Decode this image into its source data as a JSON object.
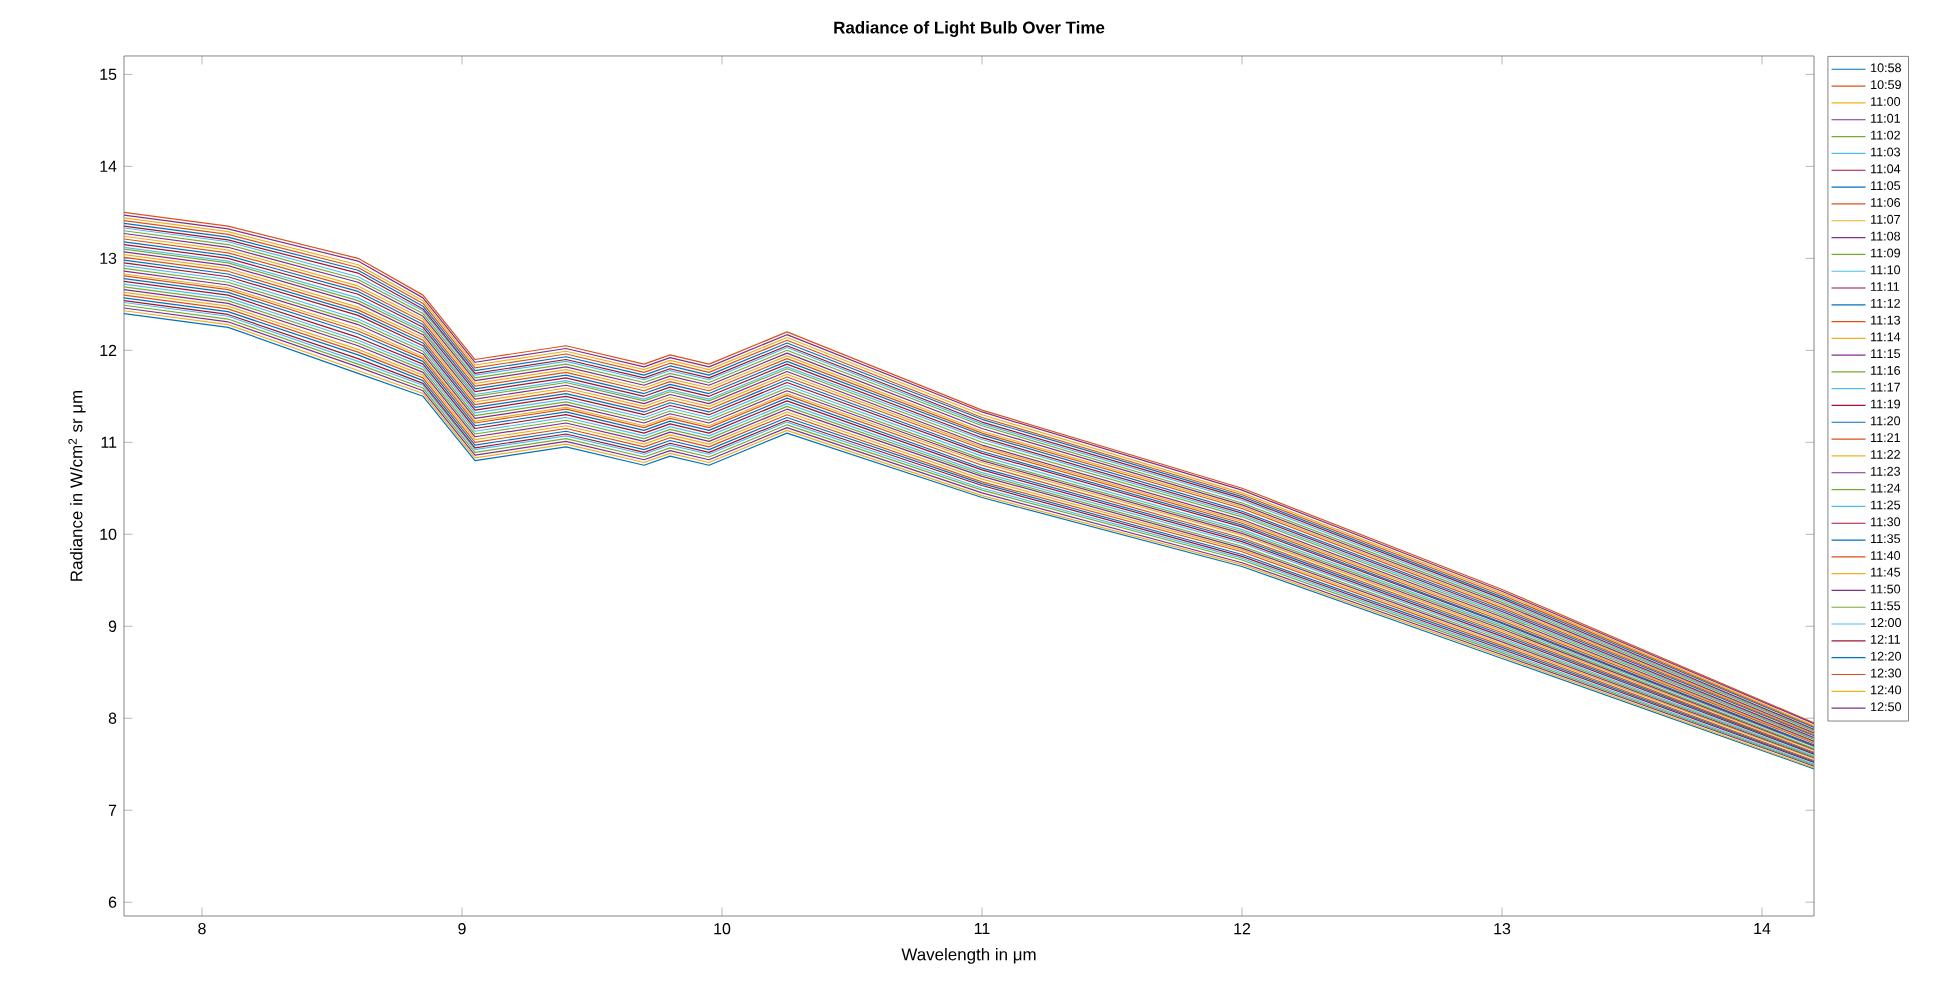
{
  "chart_data": {
    "type": "line",
    "title": "Radiance of Light Bulb Over Time",
    "xlabel": "Wavelength in μm",
    "ylabel": "Radiance in W/cm$^{2}$ sr μm",
    "x": [
      7.7,
      8.1,
      8.6,
      8.85,
      9.05,
      9.4,
      9.7,
      9.8,
      9.95,
      10.25,
      11.0,
      12,
      13,
      14.2
    ],
    "xlim": [
      7.7,
      14.2
    ],
    "ylim": [
      5.85,
      15.2
    ],
    "xticks": [
      8,
      9,
      10,
      11,
      12,
      13,
      14
    ],
    "yticks": [
      6,
      7,
      8,
      9,
      10,
      11,
      12,
      13,
      14,
      15
    ],
    "legend": "right",
    "series": [
      {
        "name": "10:58",
        "color": "#0072bd",
        "values": [
          12.4,
          12.25,
          11.75,
          11.5,
          10.8,
          10.95,
          10.75,
          10.85,
          10.75,
          11.1,
          10.4,
          9.65,
          8.65,
          7.45
        ]
      },
      {
        "name": "10:59",
        "color": "#d95319",
        "values": [
          13.5,
          13.35,
          13.0,
          12.6,
          11.9,
          12.05,
          11.85,
          11.95,
          11.85,
          12.2,
          11.35,
          10.5,
          9.4,
          7.95
        ]
      },
      {
        "name": "11:00",
        "color": "#edb120",
        "values": [
          12.43,
          12.28,
          11.78,
          11.53,
          10.83,
          10.98,
          10.78,
          10.88,
          10.78,
          11.13,
          10.42,
          9.67,
          8.67,
          7.46
        ]
      },
      {
        "name": "11:01",
        "color": "#7e2f8e",
        "values": [
          12.46,
          12.31,
          11.82,
          11.56,
          10.86,
          11.01,
          10.81,
          10.91,
          10.81,
          11.16,
          10.45,
          9.69,
          8.69,
          7.48
        ]
      },
      {
        "name": "11:02",
        "color": "#77ac30",
        "values": [
          12.49,
          12.34,
          11.85,
          11.59,
          10.89,
          11.04,
          10.84,
          10.94,
          10.84,
          11.19,
          10.48,
          9.72,
          8.71,
          7.49
        ]
      },
      {
        "name": "11:03",
        "color": "#4dbeee",
        "values": [
          12.52,
          12.37,
          11.88,
          11.62,
          10.92,
          11.07,
          10.87,
          10.97,
          10.87,
          11.22,
          10.5,
          9.74,
          8.73,
          7.5
        ]
      },
      {
        "name": "11:04",
        "color": "#a2142f",
        "values": [
          12.54,
          12.39,
          11.91,
          11.64,
          10.94,
          11.09,
          10.89,
          10.99,
          10.89,
          11.24,
          10.53,
          9.76,
          8.75,
          7.52
        ]
      },
      {
        "name": "11:05",
        "color": "#0072bd",
        "values": [
          12.57,
          12.42,
          11.95,
          11.67,
          10.97,
          11.12,
          10.92,
          11.02,
          10.92,
          11.27,
          10.55,
          9.78,
          8.77,
          7.53
        ]
      },
      {
        "name": "11:06",
        "color": "#d95319",
        "values": [
          12.6,
          12.45,
          11.98,
          11.7,
          11.0,
          11.15,
          10.95,
          11.05,
          10.95,
          11.3,
          10.57,
          9.81,
          8.79,
          7.54
        ]
      },
      {
        "name": "11:07",
        "color": "#edb120",
        "values": [
          12.63,
          12.48,
          12.01,
          11.73,
          11.03,
          11.18,
          10.98,
          11.08,
          10.98,
          11.33,
          10.6,
          9.83,
          8.81,
          7.56
        ]
      },
      {
        "name": "11:08",
        "color": "#7e2f8e",
        "values": [
          12.66,
          12.51,
          12.05,
          11.76,
          11.06,
          11.21,
          11.01,
          11.11,
          11.01,
          11.36,
          10.63,
          9.85,
          8.83,
          7.57
        ]
      },
      {
        "name": "11:09",
        "color": "#77ac30",
        "values": [
          12.69,
          12.54,
          12.08,
          11.79,
          11.09,
          11.24,
          11.04,
          11.14,
          11.04,
          11.39,
          10.65,
          9.87,
          8.85,
          7.58
        ]
      },
      {
        "name": "11:10",
        "color": "#4dbeee",
        "values": [
          12.72,
          12.57,
          12.11,
          11.82,
          11.12,
          11.27,
          11.07,
          11.17,
          11.07,
          11.42,
          10.67,
          9.9,
          8.87,
          7.59
        ]
      },
      {
        "name": "11:11",
        "color": "#a2142f",
        "values": [
          12.75,
          12.6,
          12.14,
          11.85,
          11.15,
          11.3,
          11.1,
          11.2,
          11.1,
          11.45,
          10.7,
          9.92,
          8.89,
          7.61
        ]
      },
      {
        "name": "11:12",
        "color": "#0072bd",
        "values": [
          12.78,
          12.63,
          12.18,
          11.88,
          11.18,
          11.33,
          11.13,
          11.23,
          11.13,
          11.48,
          10.72,
          9.94,
          8.91,
          7.62
        ]
      },
      {
        "name": "11:13",
        "color": "#d95319",
        "values": [
          12.81,
          12.66,
          12.21,
          11.91,
          11.21,
          11.36,
          11.16,
          11.26,
          11.16,
          11.51,
          10.75,
          9.96,
          8.93,
          7.63
        ]
      },
      {
        "name": "11:14",
        "color": "#edb120",
        "values": [
          12.83,
          12.68,
          12.24,
          11.93,
          11.23,
          11.38,
          11.18,
          11.28,
          11.18,
          11.53,
          10.78,
          9.99,
          8.95,
          7.65
        ]
      },
      {
        "name": "11:15",
        "color": "#7e2f8e",
        "values": [
          12.86,
          12.71,
          12.28,
          11.96,
          11.26,
          11.41,
          11.21,
          11.31,
          11.21,
          11.56,
          10.8,
          10.01,
          8.97,
          7.66
        ]
      },
      {
        "name": "11:16",
        "color": "#77ac30",
        "values": [
          12.89,
          12.74,
          12.31,
          11.99,
          11.29,
          11.44,
          11.24,
          11.34,
          11.24,
          11.59,
          10.82,
          10.03,
          8.99,
          7.67
        ]
      },
      {
        "name": "11:17",
        "color": "#4dbeee",
        "values": [
          12.92,
          12.77,
          12.34,
          12.02,
          11.32,
          11.47,
          11.27,
          11.37,
          11.27,
          11.62,
          10.85,
          10.05,
          9.01,
          7.69
        ]
      },
      {
        "name": "11:19",
        "color": "#a2142f",
        "values": [
          12.95,
          12.8,
          12.38,
          12.05,
          11.35,
          11.5,
          11.3,
          11.4,
          11.3,
          11.65,
          10.88,
          10.08,
          9.03,
          7.7
        ]
      },
      {
        "name": "11:20",
        "color": "#0072bd",
        "values": [
          12.98,
          12.83,
          12.41,
          12.08,
          11.38,
          11.53,
          11.33,
          11.43,
          11.33,
          11.68,
          10.9,
          10.1,
          9.04,
          7.71
        ]
      },
      {
        "name": "11:21",
        "color": "#d95319",
        "values": [
          13.01,
          12.86,
          12.44,
          12.11,
          11.41,
          11.56,
          11.36,
          11.46,
          11.36,
          11.71,
          10.93,
          10.12,
          9.06,
          7.73
        ]
      },
      {
        "name": "11:22",
        "color": "#edb120",
        "values": [
          13.04,
          12.89,
          12.47,
          12.14,
          11.44,
          11.59,
          11.39,
          11.49,
          11.39,
          11.74,
          10.95,
          10.14,
          9.08,
          7.74
        ]
      },
      {
        "name": "11:23",
        "color": "#7e2f8e",
        "values": [
          13.07,
          12.92,
          12.51,
          12.17,
          11.47,
          11.62,
          11.42,
          11.52,
          11.42,
          11.77,
          10.97,
          10.16,
          9.1,
          7.75
        ]
      },
      {
        "name": "11:24",
        "color": "#77ac30",
        "values": [
          13.1,
          12.95,
          12.54,
          12.2,
          11.5,
          11.65,
          11.45,
          11.55,
          11.45,
          11.8,
          11.0,
          10.19,
          9.12,
          7.77
        ]
      },
      {
        "name": "11:25",
        "color": "#4dbeee",
        "values": [
          13.12,
          12.97,
          12.57,
          12.22,
          11.52,
          11.67,
          11.47,
          11.57,
          11.47,
          11.82,
          11.03,
          10.21,
          9.14,
          7.78
        ]
      },
      {
        "name": "11:30",
        "color": "#a2142f",
        "values": [
          13.15,
          13.0,
          12.61,
          12.25,
          11.55,
          11.7,
          11.5,
          11.6,
          11.5,
          11.85,
          11.05,
          10.23,
          9.16,
          7.79
        ]
      },
      {
        "name": "11:35",
        "color": "#0072bd",
        "values": [
          13.18,
          13.03,
          12.64,
          12.28,
          11.58,
          11.73,
          11.53,
          11.63,
          11.53,
          11.88,
          11.08,
          10.25,
          9.18,
          7.81
        ]
      },
      {
        "name": "11:40",
        "color": "#d95319",
        "values": [
          13.21,
          13.06,
          12.67,
          12.31,
          11.61,
          11.76,
          11.56,
          11.66,
          11.56,
          11.91,
          11.1,
          10.28,
          9.2,
          7.82
        ]
      },
      {
        "name": "11:45",
        "color": "#edb120",
        "values": [
          13.24,
          13.09,
          12.7,
          12.34,
          11.64,
          11.79,
          11.59,
          11.69,
          11.59,
          11.94,
          11.12,
          10.3,
          9.22,
          7.83
        ]
      },
      {
        "name": "11:50",
        "color": "#7e2f8e",
        "values": [
          13.27,
          13.12,
          12.74,
          12.37,
          11.67,
          11.82,
          11.62,
          11.72,
          11.62,
          11.97,
          11.15,
          10.32,
          9.24,
          7.84
        ]
      },
      {
        "name": "11:55",
        "color": "#77ac30",
        "values": [
          13.3,
          13.15,
          12.77,
          12.4,
          11.7,
          11.85,
          11.65,
          11.75,
          11.65,
          12.0,
          11.18,
          10.34,
          9.26,
          7.86
        ]
      },
      {
        "name": "12:00",
        "color": "#4dbeee",
        "values": [
          13.33,
          13.18,
          12.8,
          12.43,
          11.73,
          11.88,
          11.68,
          11.78,
          11.68,
          12.03,
          11.2,
          10.37,
          9.28,
          7.87
        ]
      },
      {
        "name": "12:11",
        "color": "#a2142f",
        "values": [
          13.35,
          13.2,
          12.84,
          12.45,
          11.75,
          11.9,
          11.7,
          11.8,
          11.7,
          12.05,
          11.22,
          10.39,
          9.3,
          7.88
        ]
      },
      {
        "name": "12:20",
        "color": "#0072bd",
        "values": [
          13.38,
          13.23,
          12.87,
          12.48,
          11.78,
          11.93,
          11.73,
          11.83,
          11.73,
          12.08,
          11.25,
          10.41,
          9.32,
          7.9
        ]
      },
      {
        "name": "12:30",
        "color": "#d95319",
        "values": [
          13.41,
          13.26,
          12.9,
          12.51,
          11.81,
          11.96,
          11.76,
          11.86,
          11.76,
          12.11,
          11.27,
          10.43,
          9.34,
          7.91
        ]
      },
      {
        "name": "12:40",
        "color": "#edb120",
        "values": [
          13.44,
          13.29,
          12.93,
          12.54,
          11.84,
          11.99,
          11.79,
          11.89,
          11.79,
          12.14,
          11.3,
          10.45,
          9.36,
          7.92
        ]
      },
      {
        "name": "12:50",
        "color": "#7e2f8e",
        "values": [
          13.47,
          13.32,
          12.97,
          12.57,
          11.87,
          12.02,
          11.82,
          11.92,
          11.82,
          12.17,
          11.33,
          10.48,
          9.38,
          7.94
        ]
      }
    ]
  }
}
